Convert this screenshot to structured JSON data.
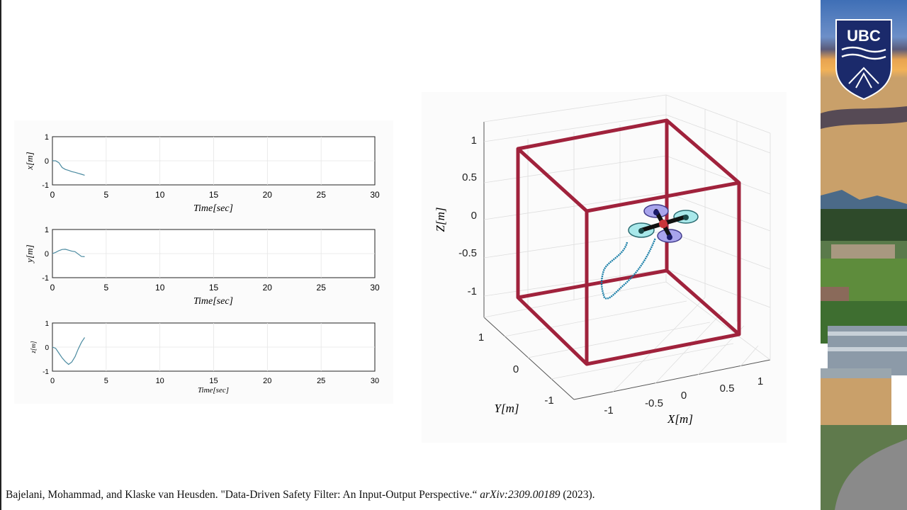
{
  "time_plots": {
    "x_ticks": [
      "0",
      "5",
      "10",
      "15",
      "20",
      "25",
      "30"
    ],
    "y_ticks": [
      "1",
      "0",
      "-1"
    ],
    "xlabel": "Time[sec]",
    "panels": [
      {
        "ylabel": "x[m]"
      },
      {
        "ylabel": "y[m]"
      },
      {
        "ylabel": "z[m]"
      }
    ]
  },
  "plot3d": {
    "z_ticks": [
      "1",
      "0.5",
      "0",
      "-0.5",
      "-1"
    ],
    "zlabel": "Z[m]",
    "y_ticks": [
      "1",
      "0",
      "-1"
    ],
    "ylabel": "Y[m]",
    "x_ticks": [
      "-1",
      "-0.5",
      "0",
      "0.5",
      "1"
    ],
    "xlabel": "X[m]"
  },
  "citation": {
    "authors": "Bajelani, Mohammad, and Klaske van Heusden. \"Data-Driven Safety Filter: An Input-Output Perspective.“ ",
    "venue": "arXiv:2309.00189",
    "year": " (2023)."
  },
  "logo": {
    "text": "UBC"
  },
  "colors": {
    "trace": "#4a8aa0",
    "box": "#a0223c",
    "path3d": "#1a7fa8"
  },
  "chart_data": [
    {
      "type": "line",
      "xlabel": "Time[sec]",
      "ylabel": "x[m]",
      "xlim": [
        0,
        30
      ],
      "ylim": [
        -1,
        1
      ],
      "grid": true,
      "x": [
        0,
        0.3,
        0.6,
        0.9,
        1.2,
        1.5,
        1.8,
        2.1,
        2.4,
        2.7,
        3.0
      ],
      "values": [
        0,
        0.0,
        -0.08,
        -0.28,
        -0.36,
        -0.4,
        -0.45,
        -0.48,
        -0.52,
        -0.56,
        -0.6
      ]
    },
    {
      "type": "line",
      "xlabel": "Time[sec]",
      "ylabel": "y[m]",
      "xlim": [
        0,
        30
      ],
      "ylim": [
        -1,
        1
      ],
      "grid": true,
      "x": [
        0,
        0.3,
        0.6,
        0.9,
        1.2,
        1.5,
        1.8,
        2.1,
        2.4,
        2.7,
        3.0
      ],
      "values": [
        0,
        0.05,
        0.12,
        0.17,
        0.18,
        0.14,
        0.1,
        0.08,
        -0.02,
        -0.12,
        -0.13
      ]
    },
    {
      "type": "line",
      "xlabel": "Time[sec]",
      "ylabel": "z[m]",
      "xlim": [
        0,
        30
      ],
      "ylim": [
        -1,
        1
      ],
      "grid": true,
      "x": [
        0,
        0.3,
        0.6,
        0.9,
        1.2,
        1.5,
        1.8,
        2.1,
        2.4,
        2.7,
        3.0
      ],
      "values": [
        0,
        -0.05,
        -0.25,
        -0.45,
        -0.6,
        -0.72,
        -0.62,
        -0.4,
        -0.08,
        0.2,
        0.4
      ]
    },
    {
      "type": "scatter",
      "xlabel": "X[m]",
      "ylabel": "Y[m]",
      "zlabel": "Z[m]",
      "xlim": [
        -1,
        1
      ],
      "ylim": [
        -1,
        1
      ],
      "zlim": [
        -1,
        1
      ],
      "grid": true
    }
  ]
}
